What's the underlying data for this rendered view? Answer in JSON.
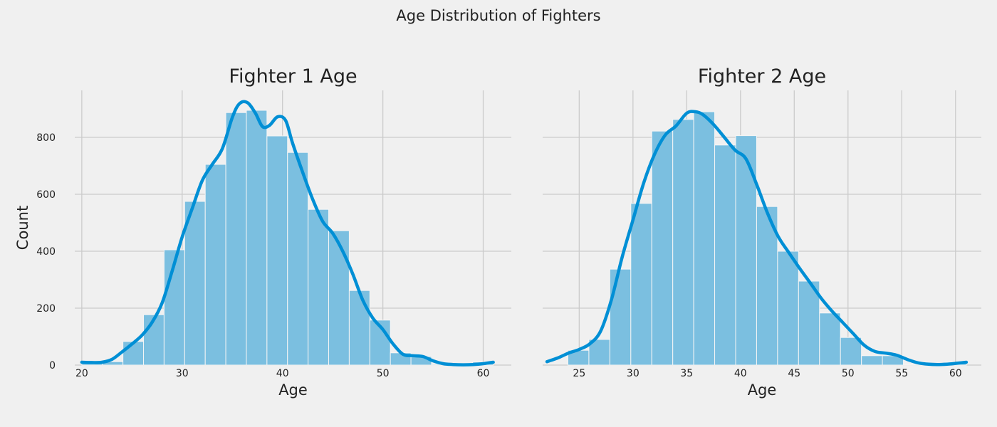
{
  "figure_title": "Age Distribution of Fighters",
  "colors": {
    "background": "#f0f0f0",
    "grid": "#cbcbcb",
    "bar_fill": "#7bbfe0",
    "bar_edge": "#f5f5f5",
    "kde_line": "#008fd5",
    "text": "#222222"
  },
  "chart_data": [
    {
      "type": "bar",
      "title": "Fighter 1 Age",
      "xlabel": "Age",
      "ylabel": "Count",
      "xlim": [
        19.3,
        62.8
      ],
      "ylim": [
        0,
        965
      ],
      "xticks": [
        20,
        30,
        40,
        50,
        60
      ],
      "yticks": [
        0,
        200,
        400,
        600,
        800
      ],
      "grid": true,
      "bins": [
        {
          "start": 20.0,
          "end": 22.05,
          "count": 10
        },
        {
          "start": 22.05,
          "end": 24.1,
          "count": 12
        },
        {
          "start": 24.1,
          "end": 26.15,
          "count": 83
        },
        {
          "start": 26.15,
          "end": 28.2,
          "count": 177
        },
        {
          "start": 28.2,
          "end": 30.25,
          "count": 405
        },
        {
          "start": 30.25,
          "end": 32.3,
          "count": 575
        },
        {
          "start": 32.3,
          "end": 34.35,
          "count": 705
        },
        {
          "start": 34.35,
          "end": 36.4,
          "count": 887
        },
        {
          "start": 36.4,
          "end": 38.45,
          "count": 895
        },
        {
          "start": 38.45,
          "end": 40.5,
          "count": 805
        },
        {
          "start": 40.5,
          "end": 42.55,
          "count": 747
        },
        {
          "start": 42.55,
          "end": 44.6,
          "count": 547
        },
        {
          "start": 44.6,
          "end": 46.65,
          "count": 472
        },
        {
          "start": 46.65,
          "end": 48.7,
          "count": 262
        },
        {
          "start": 48.7,
          "end": 50.75,
          "count": 158
        },
        {
          "start": 50.75,
          "end": 52.8,
          "count": 43
        },
        {
          "start": 52.8,
          "end": 54.85,
          "count": 30
        },
        {
          "start": 54.85,
          "end": 56.9,
          "count": 3
        },
        {
          "start": 56.9,
          "end": 58.95,
          "count": 1
        },
        {
          "start": 58.95,
          "end": 61.0,
          "count": 11
        }
      ],
      "kde": [
        [
          20.0,
          10
        ],
        [
          21.0,
          9
        ],
        [
          22.0,
          10
        ],
        [
          23.0,
          20
        ],
        [
          24.0,
          46
        ],
        [
          25.0,
          74
        ],
        [
          26.0,
          105
        ],
        [
          27.0,
          150
        ],
        [
          28.0,
          218
        ],
        [
          29.0,
          330
        ],
        [
          30.0,
          450
        ],
        [
          31.0,
          550
        ],
        [
          32.0,
          648
        ],
        [
          33.0,
          705
        ],
        [
          34.0,
          760
        ],
        [
          35.0,
          870
        ],
        [
          35.7,
          918
        ],
        [
          36.5,
          922
        ],
        [
          37.3,
          885
        ],
        [
          38.0,
          838
        ],
        [
          38.7,
          842
        ],
        [
          39.5,
          872
        ],
        [
          40.3,
          860
        ],
        [
          41.0,
          780
        ],
        [
          42.0,
          678
        ],
        [
          43.0,
          583
        ],
        [
          44.0,
          505
        ],
        [
          45.0,
          463
        ],
        [
          46.0,
          400
        ],
        [
          47.0,
          320
        ],
        [
          48.0,
          228
        ],
        [
          49.0,
          165
        ],
        [
          50.0,
          125
        ],
        [
          51.0,
          75
        ],
        [
          52.0,
          38
        ],
        [
          53.0,
          33
        ],
        [
          54.0,
          30
        ],
        [
          55.0,
          15
        ],
        [
          56.0,
          5
        ],
        [
          57.0,
          2
        ],
        [
          58.0,
          1
        ],
        [
          59.0,
          2
        ],
        [
          60.0,
          5
        ],
        [
          61.0,
          10
        ]
      ]
    },
    {
      "type": "bar",
      "title": "Fighter 2 Age",
      "xlabel": "Age",
      "ylabel": "",
      "xlim": [
        21.6,
        62.4
      ],
      "ylim": [
        0,
        965
      ],
      "xticks": [
        25,
        30,
        35,
        40,
        45,
        50,
        55,
        60
      ],
      "yticks": [
        0,
        200,
        400,
        600,
        800
      ],
      "grid": true,
      "bins": [
        {
          "start": 22.0,
          "end": 23.95,
          "count": 0
        },
        {
          "start": 23.95,
          "end": 25.9,
          "count": 52
        },
        {
          "start": 25.9,
          "end": 27.85,
          "count": 90
        },
        {
          "start": 27.85,
          "end": 29.8,
          "count": 337
        },
        {
          "start": 29.8,
          "end": 31.75,
          "count": 568
        },
        {
          "start": 31.75,
          "end": 33.7,
          "count": 822
        },
        {
          "start": 33.7,
          "end": 35.65,
          "count": 863
        },
        {
          "start": 35.65,
          "end": 37.6,
          "count": 890
        },
        {
          "start": 37.6,
          "end": 39.55,
          "count": 773
        },
        {
          "start": 39.55,
          "end": 41.5,
          "count": 806
        },
        {
          "start": 41.5,
          "end": 43.45,
          "count": 557
        },
        {
          "start": 43.45,
          "end": 45.4,
          "count": 400
        },
        {
          "start": 45.4,
          "end": 47.35,
          "count": 295
        },
        {
          "start": 47.35,
          "end": 49.3,
          "count": 183
        },
        {
          "start": 49.3,
          "end": 51.25,
          "count": 97
        },
        {
          "start": 51.25,
          "end": 53.2,
          "count": 33
        },
        {
          "start": 53.2,
          "end": 55.15,
          "count": 33
        },
        {
          "start": 55.15,
          "end": 57.1,
          "count": 1
        },
        {
          "start": 57.1,
          "end": 59.05,
          "count": 1
        },
        {
          "start": 59.05,
          "end": 61.0,
          "count": 10
        }
      ],
      "kde": [
        [
          22.0,
          12
        ],
        [
          23.0,
          25
        ],
        [
          24.0,
          42
        ],
        [
          25.0,
          55
        ],
        [
          26.0,
          75
        ],
        [
          27.0,
          120
        ],
        [
          28.0,
          230
        ],
        [
          29.0,
          380
        ],
        [
          30.0,
          510
        ],
        [
          31.0,
          640
        ],
        [
          32.0,
          740
        ],
        [
          33.0,
          808
        ],
        [
          34.0,
          840
        ],
        [
          35.0,
          885
        ],
        [
          35.8,
          890
        ],
        [
          36.5,
          880
        ],
        [
          37.5,
          845
        ],
        [
          38.5,
          800
        ],
        [
          39.5,
          755
        ],
        [
          40.5,
          725
        ],
        [
          41.5,
          635
        ],
        [
          42.5,
          535
        ],
        [
          43.5,
          452
        ],
        [
          44.5,
          395
        ],
        [
          45.5,
          340
        ],
        [
          46.5,
          288
        ],
        [
          47.5,
          235
        ],
        [
          48.5,
          190
        ],
        [
          49.5,
          150
        ],
        [
          50.5,
          110
        ],
        [
          51.5,
          70
        ],
        [
          52.5,
          48
        ],
        [
          53.5,
          42
        ],
        [
          54.5,
          35
        ],
        [
          55.5,
          20
        ],
        [
          56.5,
          8
        ],
        [
          57.5,
          3
        ],
        [
          58.5,
          2
        ],
        [
          59.5,
          4
        ],
        [
          60.5,
          8
        ],
        [
          61.0,
          10
        ]
      ]
    }
  ]
}
